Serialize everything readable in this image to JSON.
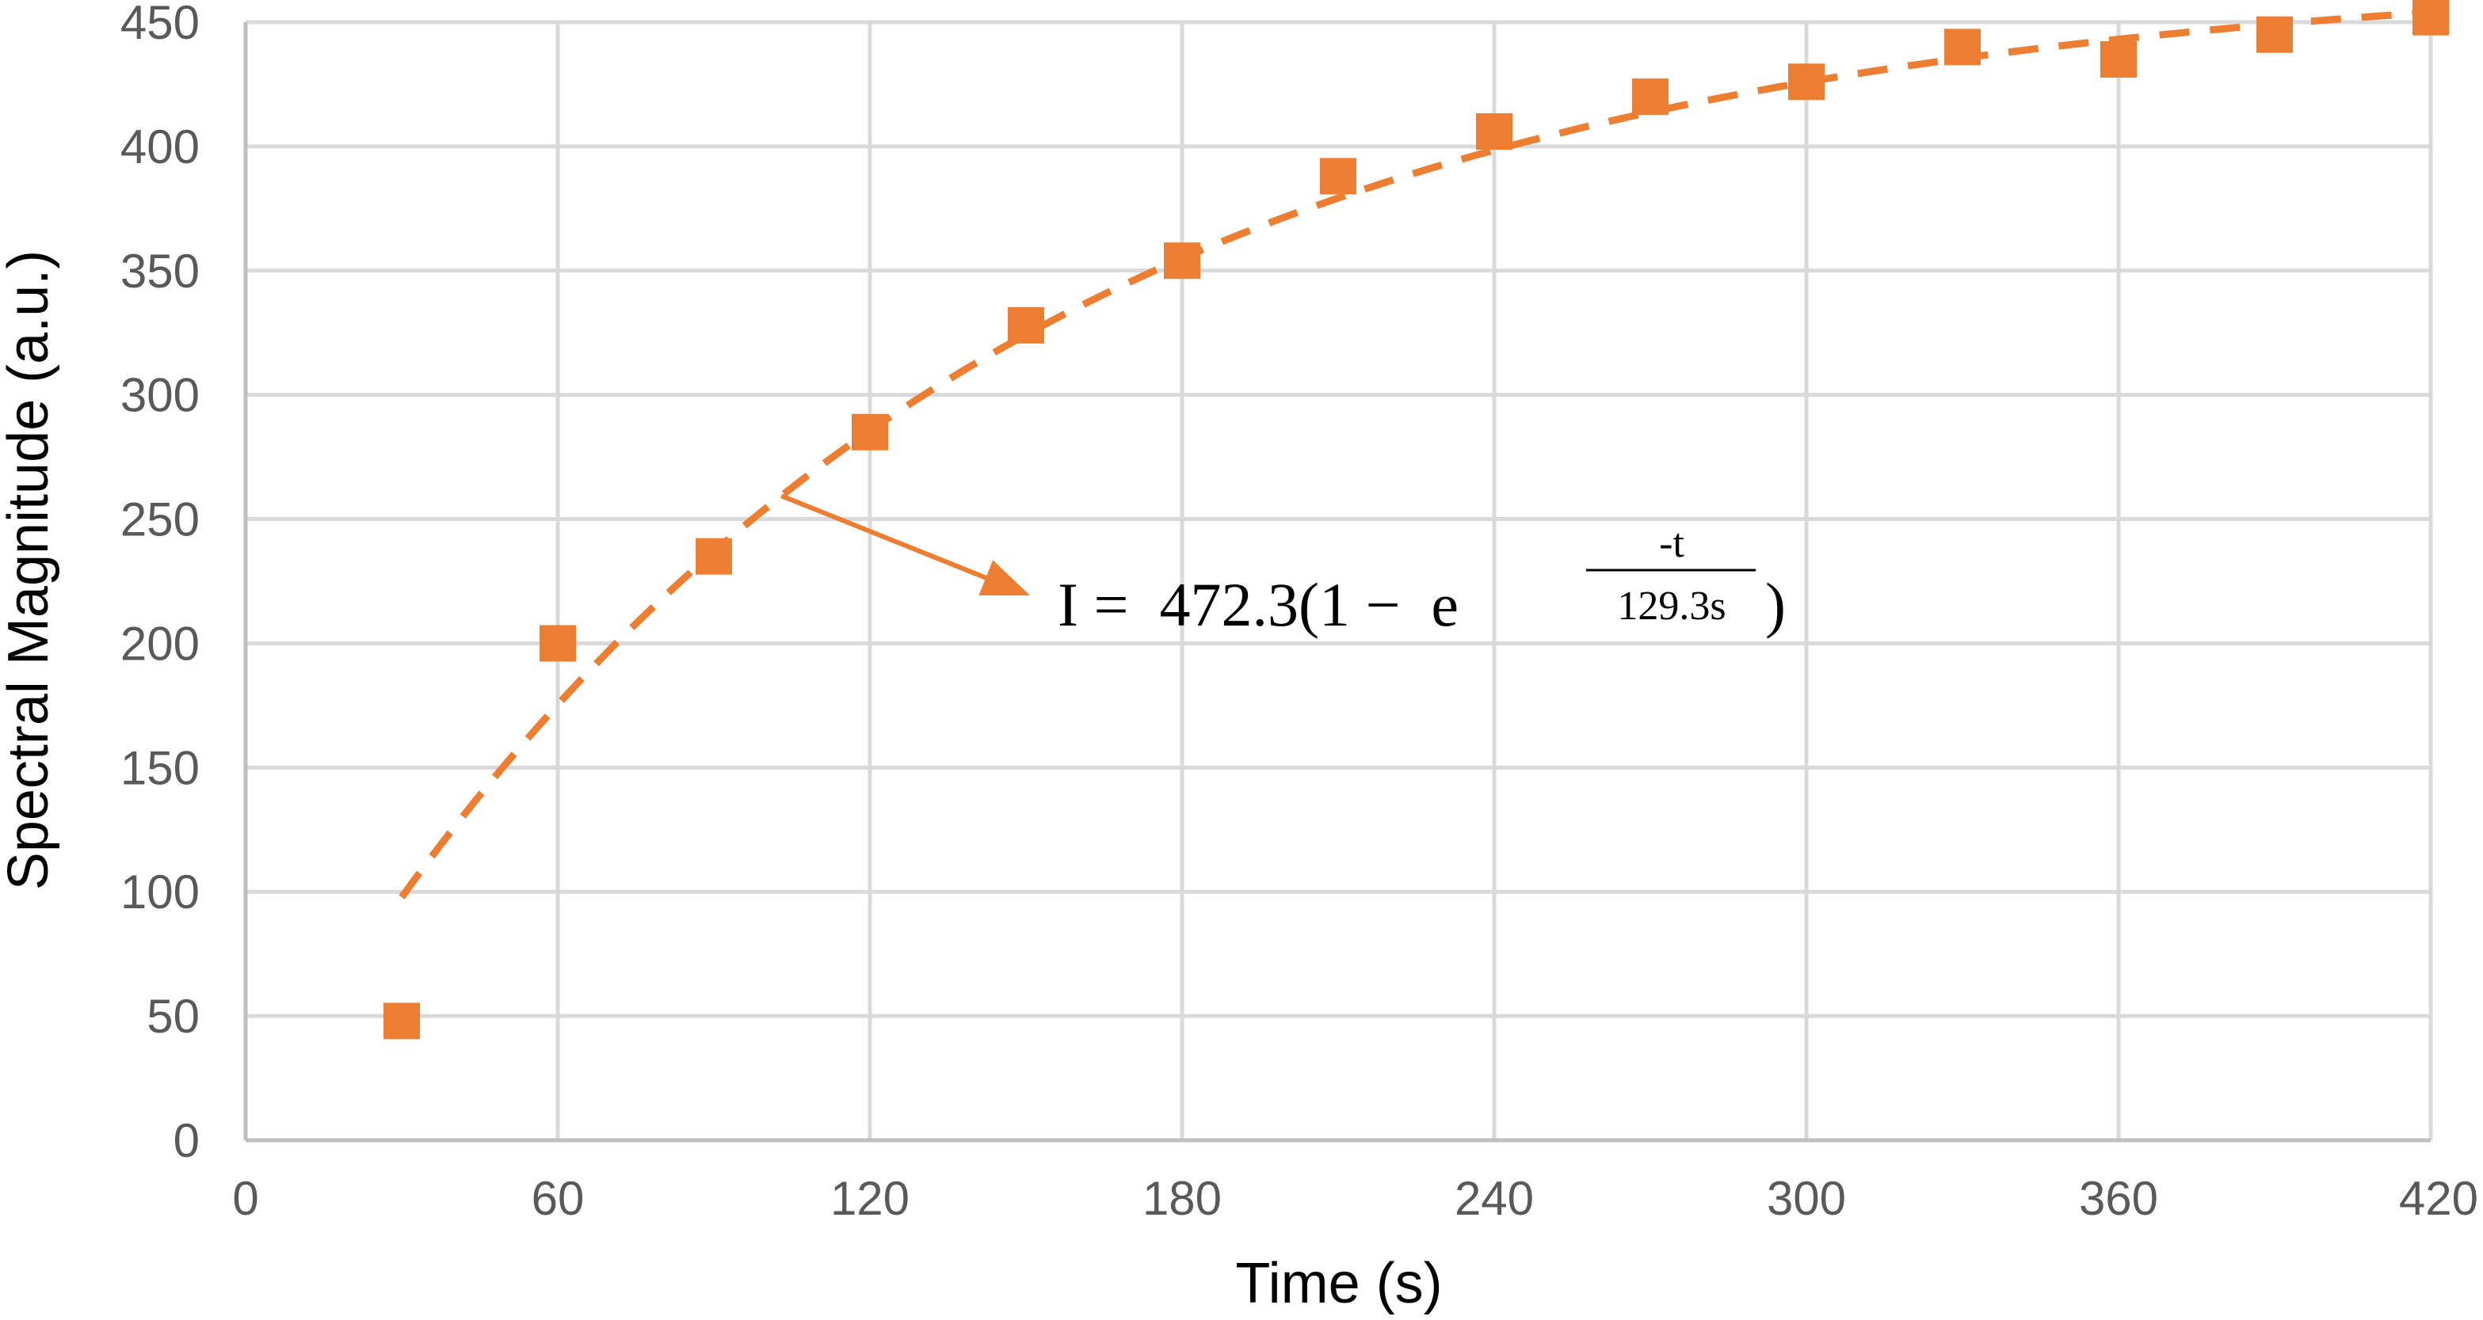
{
  "chart_data": {
    "type": "scatter",
    "xlabel": "Time (s)",
    "ylabel": "Spectral Magnitude (a.u.)",
    "xlim": [
      0,
      420
    ],
    "ylim": [
      0,
      450
    ],
    "x_ticks": [
      0,
      60,
      120,
      180,
      240,
      300,
      360,
      420
    ],
    "y_ticks": [
      0,
      50,
      100,
      150,
      200,
      250,
      300,
      350,
      400,
      450
    ],
    "grid": true,
    "legend": "none",
    "series": [
      {
        "x": [
          30,
          60,
          90,
          120,
          150,
          180,
          210,
          240,
          270,
          300,
          330,
          360,
          390,
          420
        ],
        "y": [
          48,
          200,
          235,
          285,
          328,
          354,
          388,
          406,
          420,
          426,
          440,
          435,
          445,
          452
        ],
        "marker": "square",
        "color": "#ED7D31"
      }
    ],
    "fit": {
      "amplitude": 472.3,
      "tau": 129.3,
      "x_range": [
        30,
        420
      ],
      "style": "dashed",
      "color": "#ED7D31"
    },
    "annotation": {
      "lead": "I =  472.3(1 −  e",
      "exp_num": "-t",
      "exp_den": "129.3s",
      "close": ")",
      "arrow_from_x": 103
    }
  }
}
